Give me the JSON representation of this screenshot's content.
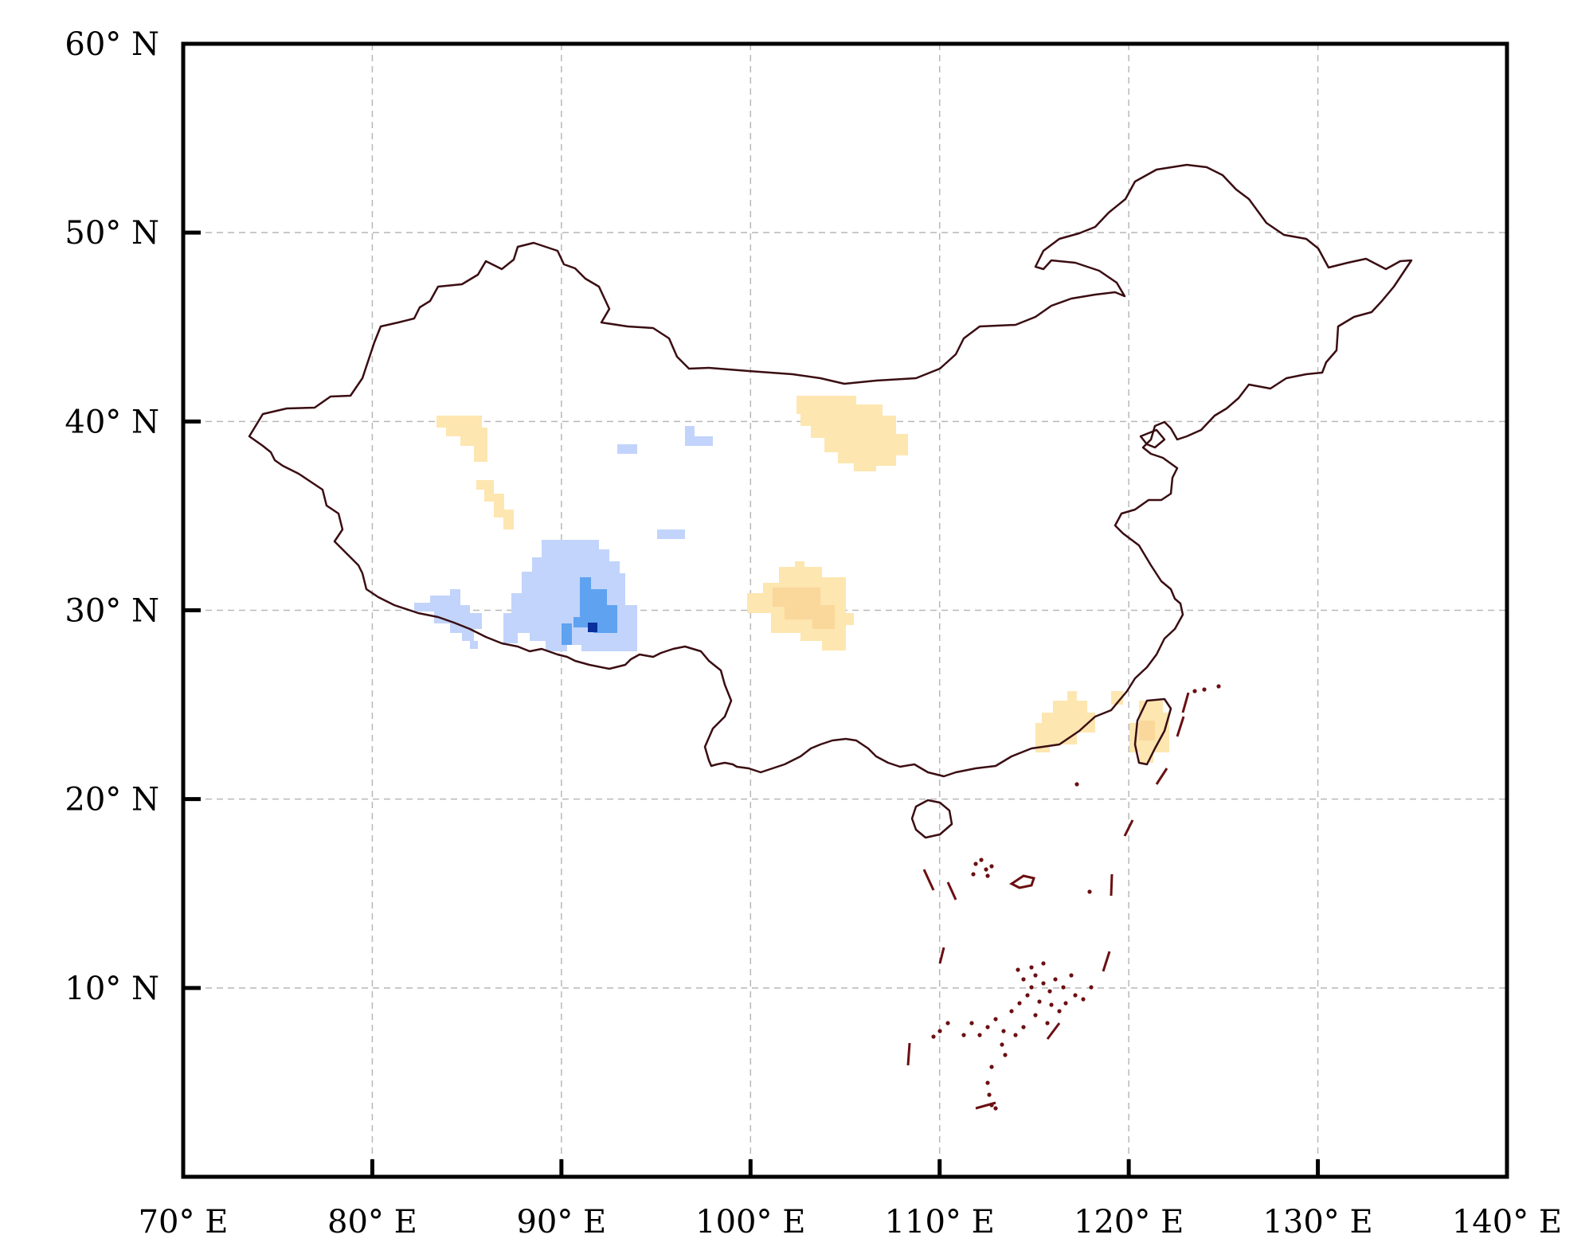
{
  "map": {
    "lon_range": [
      70,
      140
    ],
    "lat_range": [
      0,
      60
    ],
    "x_ticks": [
      {
        "value": 70,
        "label": "70° E"
      },
      {
        "value": 80,
        "label": "80° E"
      },
      {
        "value": 90,
        "label": "90° E"
      },
      {
        "value": 100,
        "label": "100° E"
      },
      {
        "value": 110,
        "label": "110° E"
      },
      {
        "value": 120,
        "label": "120° E"
      },
      {
        "value": 130,
        "label": "130° E"
      },
      {
        "value": 140,
        "label": "140° E"
      }
    ],
    "y_ticks": [
      {
        "value": 60,
        "label": "60° N"
      },
      {
        "value": 50,
        "label": "50° N"
      },
      {
        "value": 40,
        "label": "40° N"
      },
      {
        "value": 30,
        "label": "30° N"
      },
      {
        "value": 20,
        "label": "20° N"
      },
      {
        "value": 10,
        "label": "10° N"
      }
    ],
    "grid": true,
    "colors": {
      "frame": "#000000",
      "grid": "#b8b8b8",
      "border": "#3a0d12",
      "sea_boundary": "#6b0f12",
      "light_blue": "#c2d4fb",
      "mid_blue": "#5fa2f0",
      "dark_blue": "#0a2f9c",
      "light_orange": "#fde6b0",
      "mid_orange": "#fad79a"
    }
  }
}
